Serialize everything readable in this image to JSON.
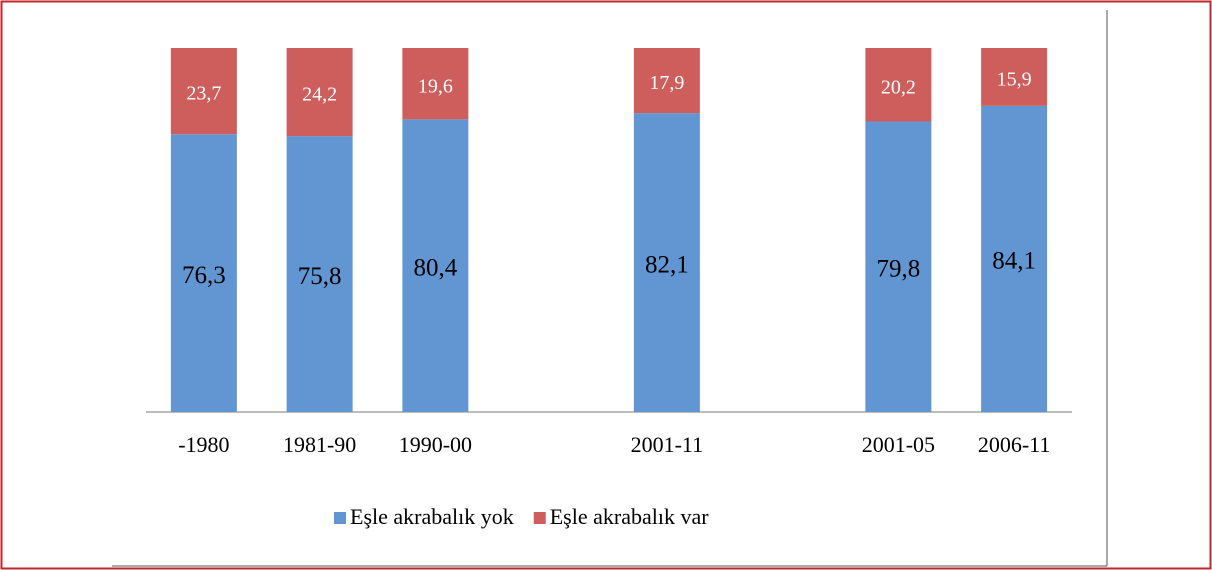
{
  "chart_data": {
    "type": "stacked_bar",
    "categories": [
      "-1980",
      "1981-90",
      "1990-00",
      null,
      "2001-11",
      null,
      "2001-05",
      "2006-11"
    ],
    "series": [
      {
        "name": "Eşle akrabalık yok",
        "color": "#6196d2",
        "values": [
          76.3,
          75.8,
          80.4,
          null,
          82.1,
          null,
          79.8,
          84.1
        ],
        "value_labels": [
          "76,3",
          "75,8",
          "80,4",
          null,
          "82,1",
          null,
          "79,8",
          "84,1"
        ]
      },
      {
        "name": "Eşle akrabalık var",
        "color": "#cd5e5c",
        "values": [
          23.7,
          24.2,
          19.6,
          null,
          17.9,
          null,
          20.2,
          15.9
        ],
        "value_labels": [
          "23,7",
          "24,2",
          "19,6",
          null,
          "17,9",
          null,
          "20,2",
          "15,9"
        ]
      }
    ],
    "ylim": [
      0,
      100
    ],
    "legend": "bottom"
  }
}
